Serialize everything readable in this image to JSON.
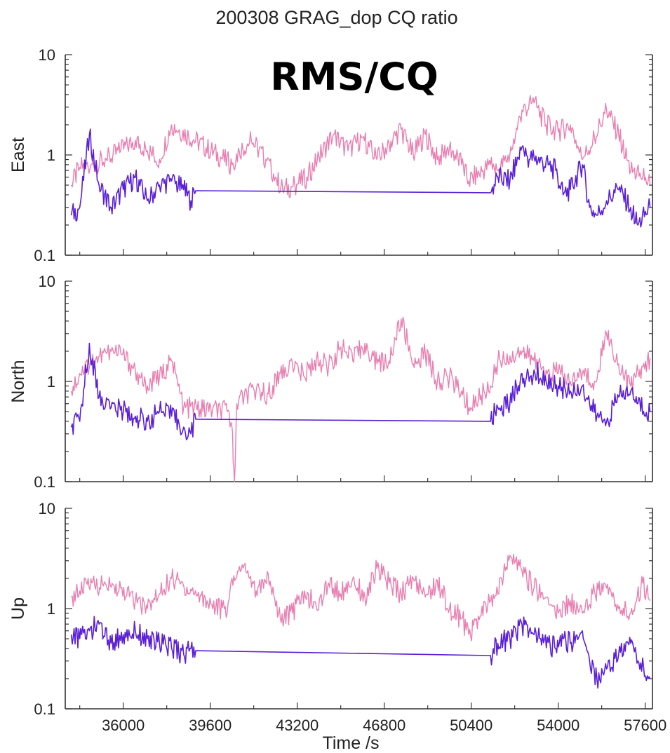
{
  "chart_data": {
    "type": "line",
    "title": "200308 GRAG_dop CQ ratio",
    "annotation": "RMS/CQ",
    "xlabel": "Time /s",
    "xlim": [
      33600,
      57900
    ],
    "x_ticks": [
      36000,
      39600,
      43200,
      46800,
      50400,
      54000,
      57600
    ],
    "x_tick_labels": [
      "36000",
      "39600",
      "43200",
      "46800",
      "50400",
      "54000",
      "57600"
    ],
    "y_scale": "log",
    "ylim": [
      0.1,
      10
    ],
    "y_tick_labels": [
      "0.1",
      "1",
      "10"
    ],
    "grid": false,
    "colors": {
      "pink_series": "#e87fb0",
      "purple_series": "#5a1fd6"
    },
    "panels": [
      {
        "ylabel": "East",
        "series": [
          {
            "color": "pink",
            "x": [
              33850,
              34200,
              34700,
              35300,
              35900,
              36500,
              37000,
              37500,
              38000,
              40500,
              40800,
              41300,
              41900,
              42300,
              42600,
              43100,
              43600,
              44100,
              44700,
              45300,
              45900,
              46500,
              47000,
              47500,
              48000,
              48500,
              49000,
              49500,
              50000,
              50300,
              51200,
              51500,
              52000,
              52500,
              53000,
              53500,
              54000,
              54500,
              55000,
              55500,
              56000,
              56500,
              57000,
              57500,
              57800
            ],
            "y": [
              0.5,
              0.75,
              0.8,
              0.9,
              1.1,
              1.4,
              1.1,
              0.9,
              2.0,
              0.8,
              1.1,
              1.4,
              0.9,
              0.6,
              0.45,
              0.5,
              0.6,
              0.95,
              1.6,
              1.1,
              1.5,
              0.9,
              1.3,
              1.8,
              1.0,
              1.6,
              0.9,
              1.2,
              0.8,
              0.55,
              0.8,
              0.7,
              1.0,
              2.8,
              3.3,
              2.0,
              1.7,
              2.0,
              0.9,
              1.5,
              2.8,
              1.6,
              0.7,
              0.6,
              0.5
            ]
          },
          {
            "color": "purple",
            "x": [
              33850,
              34200,
              34600,
              35000,
              35500,
              36000,
              36500,
              37000,
              37500,
              38000,
              38500,
              38800,
              39000,
              51200,
              51500,
              52000,
              52500,
              52800,
              53000,
              53900,
              54200,
              54500,
              55000,
              55300,
              55600,
              56000,
              56500,
              57000,
              57300,
              57800
            ],
            "y": [
              0.25,
              0.3,
              1.6,
              0.5,
              0.3,
              0.45,
              0.6,
              0.35,
              0.5,
              0.55,
              0.45,
              0.35,
              0.44,
              0.42,
              0.6,
              0.55,
              1.2,
              0.9,
              0.95,
              0.7,
              0.4,
              0.45,
              0.8,
              0.3,
              0.25,
              0.35,
              0.45,
              0.3,
              0.2,
              0.3
            ]
          }
        ]
      },
      {
        "ylabel": "North",
        "series": [
          {
            "color": "pink",
            "x": [
              33850,
              34200,
              34700,
              35300,
              35900,
              36500,
              37000,
              37500,
              38000,
              38500,
              40300,
              40500,
              40600,
              40700,
              41000,
              41500,
              42000,
              42500,
              43000,
              43500,
              44000,
              44500,
              45000,
              45500,
              46000,
              46500,
              47000,
              47500,
              48000,
              48500,
              49000,
              49500,
              50000,
              50300,
              51200,
              51500,
              52000,
              52500,
              53000,
              53500,
              54000,
              54500,
              55000,
              55500,
              56000,
              56500,
              57000,
              57500,
              57800
            ],
            "y": [
              0.8,
              1.2,
              1.6,
              1.9,
              1.9,
              1.3,
              0.9,
              1.1,
              1.6,
              0.55,
              0.5,
              0.35,
              0.1,
              0.6,
              0.7,
              0.8,
              0.75,
              1.2,
              1.5,
              1.1,
              1.7,
              1.4,
              2.2,
              1.6,
              2.4,
              1.5,
              1.6,
              4.2,
              1.5,
              1.9,
              1.0,
              1.1,
              0.8,
              0.55,
              0.9,
              1.6,
              1.8,
              2.0,
              1.6,
              1.3,
              1.2,
              1.0,
              1.2,
              1.0,
              3.0,
              1.5,
              0.9,
              1.4,
              1.7
            ]
          },
          {
            "color": "purple",
            "x": [
              33850,
              34200,
              34600,
              35000,
              35500,
              36000,
              36500,
              37000,
              37500,
              38000,
              38500,
              38800,
              39000,
              51200,
              51500,
              52000,
              52500,
              52800,
              53000,
              53500,
              54000,
              54500,
              55000,
              55300,
              55600,
              56000,
              56500,
              57000,
              57300,
              57800
            ],
            "y": [
              0.35,
              0.4,
              2.4,
              0.7,
              0.55,
              0.5,
              0.45,
              0.4,
              0.5,
              0.45,
              0.35,
              0.3,
              0.42,
              0.4,
              0.55,
              0.6,
              1.2,
              1.0,
              1.3,
              1.0,
              0.9,
              0.8,
              0.9,
              0.6,
              0.45,
              0.4,
              0.7,
              0.8,
              0.6,
              0.5
            ]
          }
        ]
      },
      {
        "ylabel": "Up",
        "series": [
          {
            "color": "pink",
            "x": [
              33850,
              34200,
              34700,
              35300,
              35900,
              36500,
              37000,
              37500,
              38000,
              40300,
              40500,
              41000,
              41500,
              42000,
              42500,
              43000,
              43500,
              44000,
              44500,
              45000,
              45500,
              46000,
              46500,
              47000,
              47500,
              48000,
              48500,
              49000,
              49500,
              50000,
              50300,
              51200,
              51500,
              52000,
              52500,
              53000,
              53500,
              54000,
              54500,
              55000,
              55500,
              56000,
              56500,
              57000,
              57500,
              57800
            ],
            "y": [
              1.3,
              1.5,
              1.8,
              1.7,
              1.6,
              1.2,
              1.0,
              1.4,
              2.0,
              0.9,
              2.0,
              2.7,
              1.5,
              2.2,
              0.8,
              0.9,
              1.5,
              1.0,
              1.8,
              1.4,
              2.0,
              1.3,
              2.5,
              1.8,
              1.4,
              2.0,
              1.3,
              1.9,
              1.0,
              0.8,
              0.55,
              1.2,
              1.4,
              3.4,
              2.4,
              1.6,
              1.3,
              0.9,
              1.2,
              0.9,
              1.5,
              1.6,
              1.0,
              0.9,
              1.8,
              1.2
            ]
          },
          {
            "color": "purple",
            "x": [
              33850,
              34200,
              34600,
              35000,
              35500,
              36000,
              36500,
              37000,
              37500,
              38000,
              38500,
              38800,
              39000,
              51200,
              51500,
              52000,
              52500,
              52800,
              53000,
              53900,
              54200,
              54500,
              55000,
              55300,
              55600,
              56000,
              56500,
              57000,
              57300,
              57800
            ],
            "y": [
              0.55,
              0.5,
              0.6,
              0.7,
              0.45,
              0.55,
              0.6,
              0.5,
              0.45,
              0.4,
              0.35,
              0.4,
              0.38,
              0.34,
              0.45,
              0.5,
              0.7,
              0.6,
              0.55,
              0.4,
              0.5,
              0.45,
              0.6,
              0.3,
              0.2,
              0.25,
              0.35,
              0.45,
              0.3,
              0.2
            ]
          }
        ]
      }
    ]
  }
}
